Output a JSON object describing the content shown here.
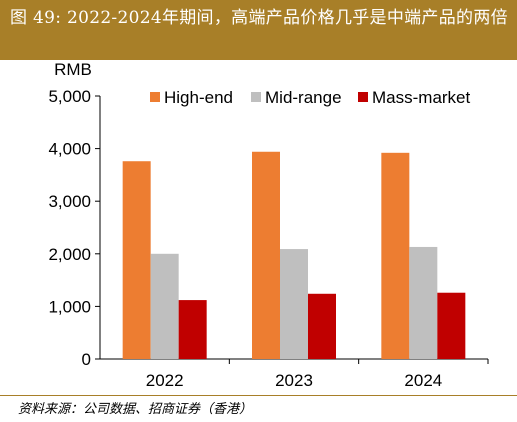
{
  "header": {
    "title": "图 49: 2022-2024年期间，高端产品价格几乎是中端产品的两倍"
  },
  "source": "资料来源：公司数据、招商证券（香港）",
  "colors": {
    "header_bg": "#a87f28",
    "high_end": "#ed7d31",
    "mid_range": "#bfbfbf",
    "mass_market": "#c00000"
  },
  "chart_data": {
    "type": "bar",
    "ylabel": "RMB",
    "ylim": [
      0,
      5000
    ],
    "yticks": [
      "0",
      "1,000",
      "2,000",
      "3,000",
      "4,000",
      "5,000"
    ],
    "ytick_values": [
      0,
      1000,
      2000,
      3000,
      4000,
      5000
    ],
    "categories": [
      "2022",
      "2023",
      "2024"
    ],
    "series": [
      {
        "name": "High-end",
        "color": "#ed7d31",
        "values": [
          3760,
          3940,
          3920
        ]
      },
      {
        "name": "Mid-range",
        "color": "#bfbfbf",
        "values": [
          2000,
          2090,
          2130
        ]
      },
      {
        "name": "Mass-market",
        "color": "#c00000",
        "values": [
          1120,
          1240,
          1260
        ]
      }
    ],
    "legend_position": "top",
    "grid": false
  }
}
